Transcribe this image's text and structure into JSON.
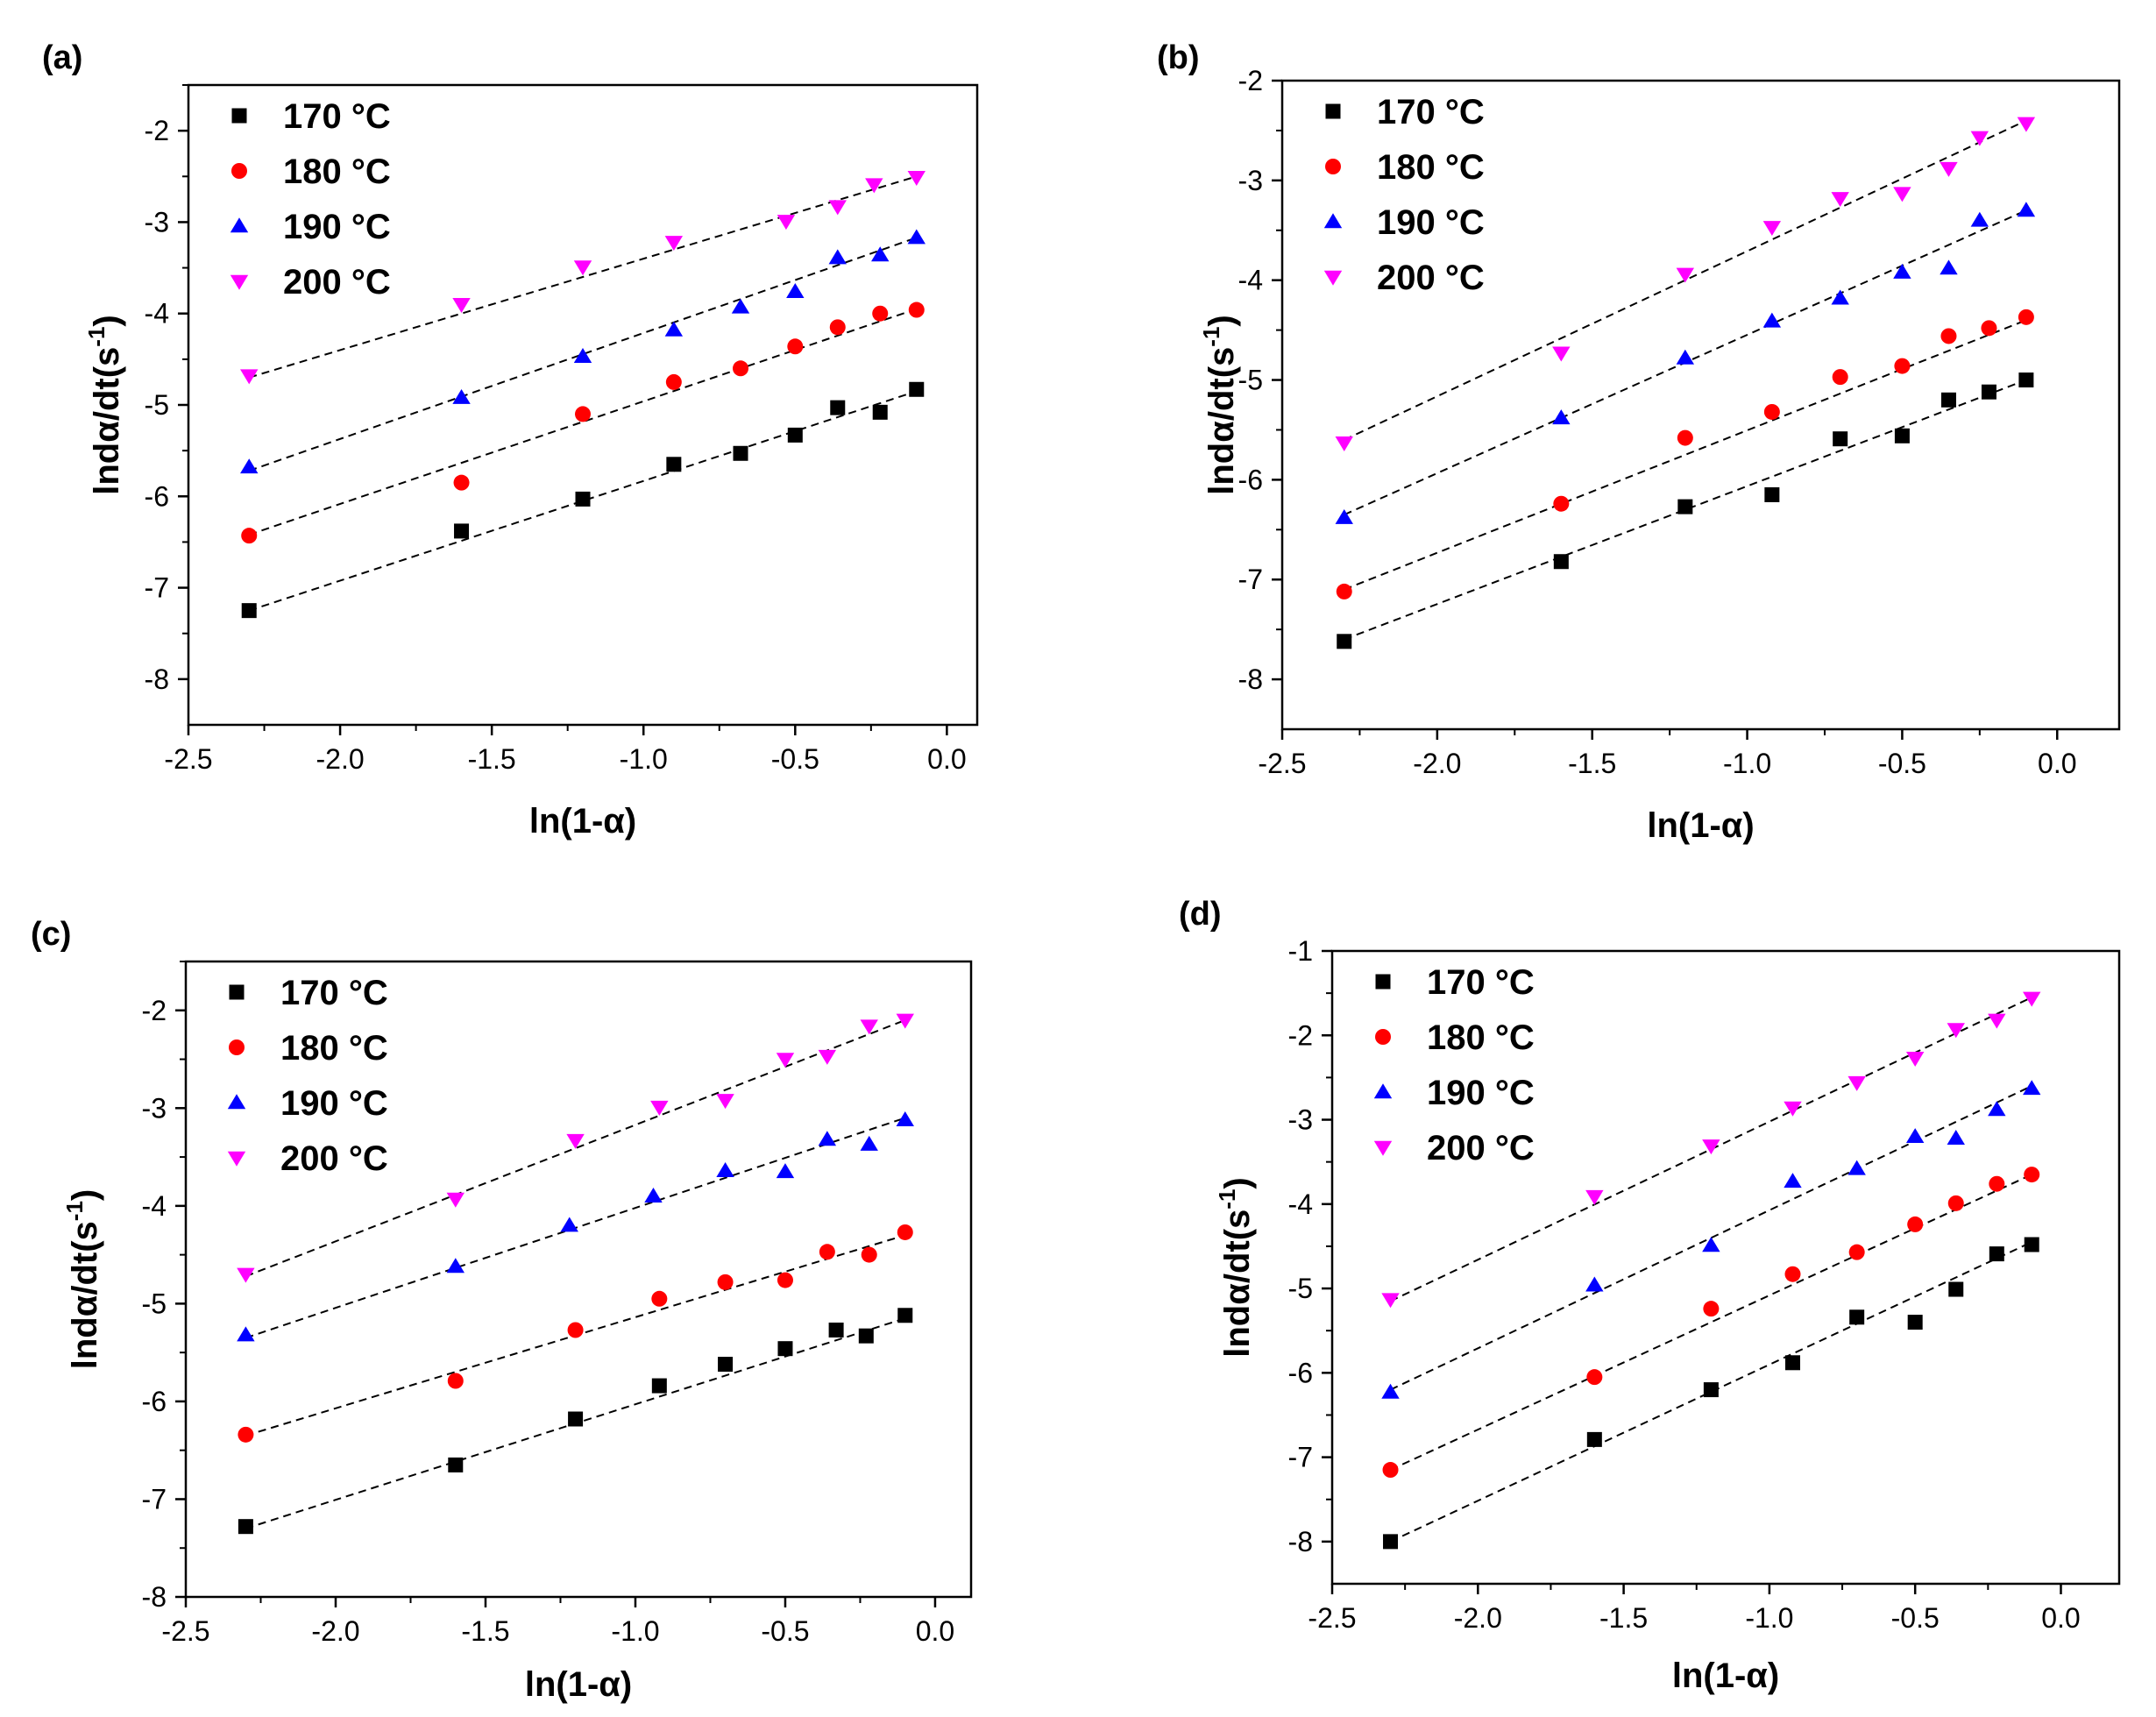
{
  "chart_data": [
    {
      "type": "scatter",
      "panel_label": "(a)",
      "xlabel": "ln(1-α)",
      "ylabel": "lndα/dt(s",
      "ylabel_sup": "-1",
      "ylabel_end": ")",
      "xlim": [
        -2.5,
        0.1
      ],
      "ylim": [
        -8.5,
        -1.5
      ],
      "xticks": [
        -2.5,
        -2.0,
        -1.5,
        -1.0,
        -0.5,
        0.0
      ],
      "xtick_labels": [
        "-2.5",
        "-2.0",
        "-1.5",
        "-1.0",
        "-0.5",
        "0.0"
      ],
      "yticks": [
        -8,
        -7,
        -6,
        -5,
        -4,
        -3,
        -2
      ],
      "ytick_labels": [
        "-8",
        "-7",
        "-6",
        "-5",
        "-4",
        "-3",
        "-2"
      ],
      "legend_position": "top-left",
      "fit_lines": "dashed",
      "series": [
        {
          "name": "170 °C",
          "marker": "square",
          "color": "#000000",
          "x": [
            -2.3,
            -1.6,
            -1.2,
            -0.9,
            -0.68,
            -0.5,
            -0.36,
            -0.22,
            -0.1
          ],
          "y": [
            -7.25,
            -6.38,
            -6.03,
            -5.65,
            -5.53,
            -5.33,
            -5.03,
            -5.08,
            -4.83
          ],
          "fit": [
            [
              -2.3,
              -7.25
            ],
            [
              -0.1,
              -4.85
            ]
          ]
        },
        {
          "name": "180 °C",
          "marker": "circle",
          "color": "#ff0000",
          "x": [
            -2.3,
            -1.6,
            -1.2,
            -0.9,
            -0.68,
            -0.5,
            -0.36,
            -0.22,
            -0.1
          ],
          "y": [
            -6.43,
            -5.85,
            -5.1,
            -4.75,
            -4.6,
            -4.36,
            -4.15,
            -4.0,
            -3.96
          ],
          "fit": [
            [
              -2.3,
              -6.42
            ],
            [
              -0.1,
              -3.95
            ]
          ]
        },
        {
          "name": "190 °C",
          "marker": "triangle-up",
          "color": "#0000ff",
          "x": [
            -2.3,
            -1.6,
            -1.2,
            -0.9,
            -0.68,
            -0.5,
            -0.36,
            -0.22,
            -0.1
          ],
          "y": [
            -5.68,
            -4.92,
            -4.47,
            -4.18,
            -3.93,
            -3.76,
            -3.39,
            -3.36,
            -3.17
          ],
          "fit": [
            [
              -2.3,
              -5.72
            ],
            [
              -0.1,
              -3.17
            ]
          ]
        },
        {
          "name": "200 °C",
          "marker": "triangle-down",
          "color": "#ff00ff",
          "x": [
            -2.3,
            -1.6,
            -1.2,
            -0.9,
            -0.53,
            -0.36,
            -0.24,
            -0.1
          ],
          "y": [
            -4.68,
            -3.9,
            -3.49,
            -3.22,
            -2.99,
            -2.83,
            -2.59,
            -2.51
          ],
          "fit": [
            [
              -2.3,
              -4.7
            ],
            [
              -0.1,
              -2.5
            ]
          ]
        }
      ]
    },
    {
      "type": "scatter",
      "panel_label": "(b)",
      "xlabel": "ln(1-α)",
      "ylabel": "lndα/dt(s",
      "ylabel_sup": "-1",
      "ylabel_end": ")",
      "xlim": [
        -2.5,
        0.2
      ],
      "ylim": [
        -8.5,
        -2.0
      ],
      "xticks": [
        -2.5,
        -2.0,
        -1.5,
        -1.0,
        -0.5,
        0.0
      ],
      "xtick_labels": [
        "-2.5",
        "-2.0",
        "-1.5",
        "-1.0",
        "-0.5",
        "0.0"
      ],
      "yticks": [
        -8,
        -7,
        -6,
        -5,
        -4,
        -3,
        -2
      ],
      "ytick_labels": [
        "-8",
        "-7",
        "-6",
        "-5",
        "-4",
        "-3",
        "-2"
      ],
      "legend_position": "top-left",
      "fit_lines": "dashed",
      "series": [
        {
          "name": "170 °C",
          "marker": "square",
          "color": "#000000",
          "x": [
            -2.3,
            -1.6,
            -1.2,
            -0.92,
            -0.7,
            -0.5,
            -0.35,
            -0.22,
            -0.1
          ],
          "y": [
            -7.62,
            -6.82,
            -6.27,
            -6.15,
            -5.59,
            -5.56,
            -5.2,
            -5.12,
            -5.0
          ],
          "fit": [
            [
              -2.3,
              -7.6
            ],
            [
              -0.1,
              -5.0
            ]
          ]
        },
        {
          "name": "180 °C",
          "marker": "circle",
          "color": "#ff0000",
          "x": [
            -2.3,
            -1.6,
            -1.2,
            -0.92,
            -0.7,
            -0.5,
            -0.35,
            -0.22,
            -0.1
          ],
          "y": [
            -7.12,
            -6.24,
            -5.58,
            -5.32,
            -4.97,
            -4.86,
            -4.56,
            -4.48,
            -4.37
          ],
          "fit": [
            [
              -2.3,
              -7.1
            ],
            [
              -0.1,
              -4.4
            ]
          ]
        },
        {
          "name": "190 °C",
          "marker": "triangle-up",
          "color": "#0000ff",
          "x": [
            -2.3,
            -1.6,
            -1.2,
            -0.92,
            -0.7,
            -0.5,
            -0.35,
            -0.25,
            -0.1
          ],
          "y": [
            -6.38,
            -5.38,
            -4.78,
            -4.41,
            -4.18,
            -3.92,
            -3.88,
            -3.4,
            -3.3
          ],
          "fit": [
            [
              -2.3,
              -6.35
            ],
            [
              -0.1,
              -3.3
            ]
          ]
        },
        {
          "name": "200 °C",
          "marker": "triangle-down",
          "color": "#ff00ff",
          "x": [
            -2.3,
            -1.6,
            -1.2,
            -0.92,
            -0.7,
            -0.5,
            -0.35,
            -0.25,
            -0.1
          ],
          "y": [
            -5.63,
            -4.73,
            -3.94,
            -3.47,
            -3.18,
            -3.13,
            -2.88,
            -2.57,
            -2.43
          ],
          "fit": [
            [
              -2.3,
              -5.6
            ],
            [
              -0.1,
              -2.4
            ]
          ]
        }
      ]
    },
    {
      "type": "scatter",
      "panel_label": "(c)",
      "xlabel": "ln(1-α)",
      "ylabel": "lndα/dt(s",
      "ylabel_sup": "-1",
      "ylabel_end": ")",
      "xlim": [
        -2.5,
        0.12
      ],
      "ylim": [
        -8.0,
        -1.5
      ],
      "xticks": [
        -2.5,
        -2.0,
        -1.5,
        -1.0,
        -0.5,
        0.0
      ],
      "xtick_labels": [
        "-2.5",
        "-2.0",
        "-1.5",
        "-1.0",
        "-0.5",
        "0.0"
      ],
      "yticks": [
        -8,
        -7,
        -6,
        -5,
        -4,
        -3,
        -2
      ],
      "ytick_labels": [
        "-8",
        "-7",
        "-6",
        "-5",
        "-4",
        "-3",
        "-2"
      ],
      "legend_position": "top-left",
      "fit_lines": "dashed",
      "series": [
        {
          "name": "170 °C",
          "marker": "square",
          "color": "#000000",
          "x": [
            -2.3,
            -1.6,
            -1.2,
            -0.92,
            -0.7,
            -0.5,
            -0.33,
            -0.23,
            -0.1
          ],
          "y": [
            -7.28,
            -6.65,
            -6.18,
            -5.84,
            -5.62,
            -5.46,
            -5.27,
            -5.33,
            -5.12
          ],
          "fit": [
            [
              -2.3,
              -7.3
            ],
            [
              -0.1,
              -5.15
            ]
          ]
        },
        {
          "name": "180 °C",
          "marker": "circle",
          "color": "#ff0000",
          "x": [
            -2.3,
            -1.6,
            -1.2,
            -0.92,
            -0.7,
            -0.5,
            -0.36,
            -0.22,
            -0.1
          ],
          "y": [
            -6.34,
            -5.79,
            -5.27,
            -4.95,
            -4.78,
            -4.76,
            -4.47,
            -4.5,
            -4.27
          ],
          "fit": [
            [
              -2.3,
              -6.35
            ],
            [
              -0.1,
              -4.3
            ]
          ]
        },
        {
          "name": "190 °C",
          "marker": "triangle-up",
          "color": "#0000ff",
          "x": [
            -2.3,
            -1.6,
            -1.22,
            -0.94,
            -0.7,
            -0.5,
            -0.36,
            -0.22,
            -0.1
          ],
          "y": [
            -5.32,
            -4.62,
            -4.2,
            -3.9,
            -3.64,
            -3.65,
            -3.32,
            -3.37,
            -3.12
          ],
          "fit": [
            [
              -2.3,
              -5.35
            ],
            [
              -0.1,
              -3.1
            ]
          ]
        },
        {
          "name": "200 °C",
          "marker": "triangle-down",
          "color": "#ff00ff",
          "x": [
            -2.3,
            -1.6,
            -1.2,
            -0.92,
            -0.7,
            -0.5,
            -0.36,
            -0.22,
            -0.1
          ],
          "y": [
            -4.7,
            -3.93,
            -3.33,
            -2.99,
            -2.92,
            -2.5,
            -2.47,
            -2.16,
            -2.1
          ],
          "fit": [
            [
              -2.3,
              -4.72
            ],
            [
              -0.1,
              -2.1
            ]
          ]
        }
      ]
    },
    {
      "type": "scatter",
      "panel_label": "(d)",
      "xlabel": "ln(1-α)",
      "ylabel": "lndα/dt(s",
      "ylabel_sup": "-1",
      "ylabel_end": ")",
      "xlim": [
        -2.5,
        0.2
      ],
      "ylim": [
        -8.5,
        -1.0
      ],
      "xticks": [
        -2.5,
        -2.0,
        -1.5,
        -1.0,
        -0.5,
        0.0
      ],
      "xtick_labels": [
        "-2.5",
        "-2.0",
        "-1.5",
        "-1.0",
        "-0.5",
        "0.0"
      ],
      "yticks": [
        -8,
        -7,
        -6,
        -5,
        -4,
        -3,
        -2,
        -1
      ],
      "ytick_labels": [
        "-8",
        "-7",
        "-6",
        "-5",
        "-4",
        "-3",
        "-2",
        "-1"
      ],
      "legend_position": "top-left",
      "fit_lines": "dashed",
      "series": [
        {
          "name": "170 °C",
          "marker": "square",
          "color": "#000000",
          "x": [
            -2.3,
            -1.6,
            -1.2,
            -0.92,
            -0.7,
            -0.5,
            -0.36,
            -0.22,
            -0.1
          ],
          "y": [
            -8.0,
            -6.79,
            -6.2,
            -5.88,
            -5.34,
            -5.4,
            -5.01,
            -4.59,
            -4.48
          ],
          "fit": [
            [
              -2.3,
              -8.0
            ],
            [
              -0.1,
              -4.45
            ]
          ]
        },
        {
          "name": "180 °C",
          "marker": "circle",
          "color": "#ff0000",
          "x": [
            -2.3,
            -1.6,
            -1.2,
            -0.92,
            -0.7,
            -0.5,
            -0.36,
            -0.22,
            -0.1
          ],
          "y": [
            -7.15,
            -6.05,
            -5.24,
            -4.83,
            -4.57,
            -4.24,
            -3.99,
            -3.76,
            -3.65
          ],
          "fit": [
            [
              -2.3,
              -7.15
            ],
            [
              -0.1,
              -3.65
            ]
          ]
        },
        {
          "name": "190 °C",
          "marker": "triangle-up",
          "color": "#0000ff",
          "x": [
            -2.3,
            -1.6,
            -1.2,
            -0.92,
            -0.7,
            -0.5,
            -0.36,
            -0.22,
            -0.1
          ],
          "y": [
            -6.23,
            -4.96,
            -4.49,
            -3.73,
            -3.58,
            -3.2,
            -3.22,
            -2.88,
            -2.63
          ],
          "fit": [
            [
              -2.3,
              -6.2
            ],
            [
              -0.1,
              -2.6
            ]
          ]
        },
        {
          "name": "200 °C",
          "marker": "triangle-down",
          "color": "#ff00ff",
          "x": [
            -2.3,
            -1.6,
            -1.2,
            -0.92,
            -0.7,
            -0.5,
            -0.36,
            -0.22,
            -0.1
          ],
          "y": [
            -5.13,
            -3.91,
            -3.31,
            -2.86,
            -2.56,
            -2.27,
            -1.93,
            -1.82,
            -1.56
          ],
          "fit": [
            [
              -2.3,
              -5.15
            ],
            [
              -0.1,
              -1.55
            ]
          ]
        }
      ]
    }
  ]
}
